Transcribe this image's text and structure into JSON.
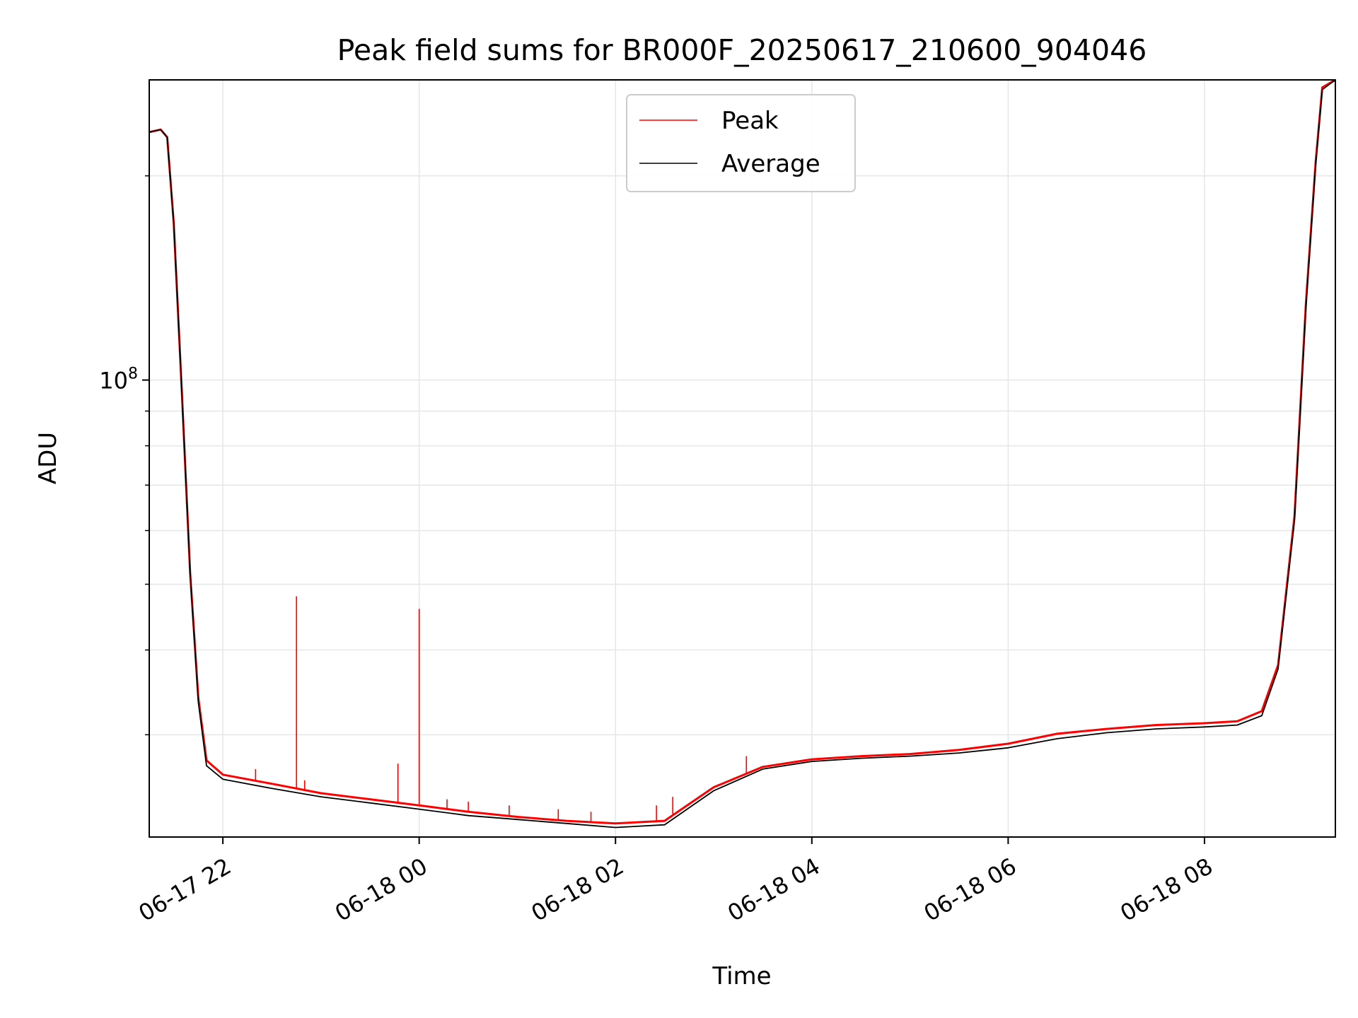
{
  "chart_data": {
    "type": "line",
    "title": "Peak field sums for BR000F_20250617_210600_904046",
    "xlabel": "Time",
    "ylabel": "ADU",
    "yscale": "log",
    "xlim": [
      "2025-06-17 21:15",
      "2025-06-18 09:20"
    ],
    "ylim": [
      21200000,
      277000000
    ],
    "grid": true,
    "legend_position": "top-center",
    "x_ticks": [
      {
        "value": "2025-06-17 22:00",
        "label": "06-17 22"
      },
      {
        "value": "2025-06-18 00:00",
        "label": "06-18 00"
      },
      {
        "value": "2025-06-18 02:00",
        "label": "06-18 02"
      },
      {
        "value": "2025-06-18 04:00",
        "label": "06-18 04"
      },
      {
        "value": "2025-06-18 06:00",
        "label": "06-18 06"
      },
      {
        "value": "2025-06-18 08:00",
        "label": "06-18 08"
      }
    ],
    "y_ticks": [
      {
        "value": 100000000,
        "base": "10",
        "exponent": "8"
      }
    ],
    "series": [
      {
        "name": "Peak",
        "color": "#ff0000",
        "x": [
          "2025-06-17 21:15",
          "2025-06-17 21:22",
          "2025-06-17 21:26",
          "2025-06-17 21:30",
          "2025-06-17 21:35",
          "2025-06-17 21:40",
          "2025-06-17 21:45",
          "2025-06-17 21:50",
          "2025-06-17 22:00",
          "2025-06-17 22:30",
          "2025-06-17 23:00",
          "2025-06-17 23:30",
          "2025-06-18 00:00",
          "2025-06-18 00:30",
          "2025-06-18 01:00",
          "2025-06-18 01:30",
          "2025-06-18 02:00",
          "2025-06-18 02:30",
          "2025-06-18 03:00",
          "2025-06-18 03:30",
          "2025-06-18 04:00",
          "2025-06-18 04:30",
          "2025-06-18 05:00",
          "2025-06-18 05:30",
          "2025-06-18 06:00",
          "2025-06-18 06:30",
          "2025-06-18 07:00",
          "2025-06-18 07:30",
          "2025-06-18 08:00",
          "2025-06-18 08:20",
          "2025-06-18 08:35",
          "2025-06-18 08:45",
          "2025-06-18 08:55",
          "2025-06-18 09:02",
          "2025-06-18 09:08",
          "2025-06-18 09:12",
          "2025-06-18 09:20"
        ],
        "values": [
          232000000,
          234000000,
          228000000,
          170000000,
          95000000,
          52000000,
          34000000,
          27500000,
          26200000,
          25400000,
          24600000,
          24100000,
          23600000,
          23100000,
          22700000,
          22400000,
          22200000,
          22400000,
          25100000,
          26900000,
          27600000,
          27900000,
          28100000,
          28500000,
          29100000,
          30100000,
          30600000,
          31000000,
          31200000,
          31400000,
          32500000,
          38000000,
          63000000,
          130000000,
          210000000,
          270000000,
          277000000
        ]
      },
      {
        "name": "Average",
        "color": "#000000",
        "x": [
          "2025-06-17 21:15",
          "2025-06-17 21:22",
          "2025-06-17 21:26",
          "2025-06-17 21:30",
          "2025-06-17 21:35",
          "2025-06-17 21:40",
          "2025-06-17 21:45",
          "2025-06-17 21:50",
          "2025-06-17 22:00",
          "2025-06-17 22:30",
          "2025-06-17 23:00",
          "2025-06-17 23:30",
          "2025-06-18 00:00",
          "2025-06-18 00:30",
          "2025-06-18 01:00",
          "2025-06-18 01:30",
          "2025-06-18 02:00",
          "2025-06-18 02:30",
          "2025-06-18 03:00",
          "2025-06-18 03:30",
          "2025-06-18 04:00",
          "2025-06-18 04:30",
          "2025-06-18 05:00",
          "2025-06-18 05:30",
          "2025-06-18 06:00",
          "2025-06-18 06:30",
          "2025-06-18 07:00",
          "2025-06-18 07:30",
          "2025-06-18 08:00",
          "2025-06-18 08:20",
          "2025-06-18 08:35",
          "2025-06-18 08:45",
          "2025-06-18 08:55",
          "2025-06-18 09:02",
          "2025-06-18 09:08",
          "2025-06-18 09:12",
          "2025-06-18 09:20"
        ],
        "values": [
          232000000,
          234000000,
          228000000,
          170000000,
          95000000,
          52000000,
          33500000,
          27000000,
          25800000,
          25000000,
          24300000,
          23800000,
          23300000,
          22800000,
          22500000,
          22200000,
          21900000,
          22100000,
          24800000,
          26700000,
          27400000,
          27700000,
          27900000,
          28200000,
          28700000,
          29600000,
          30200000,
          30600000,
          30800000,
          31000000,
          32000000,
          37500000,
          62000000,
          128000000,
          208000000,
          268000000,
          277000000
        ]
      }
    ],
    "annotations": {
      "peak_spikes": [
        {
          "x": "2025-06-17 22:20",
          "value": 26700000
        },
        {
          "x": "2025-06-17 22:45",
          "value": 48000000
        },
        {
          "x": "2025-06-17 22:50",
          "value": 25700000
        },
        {
          "x": "2025-06-17 23:47",
          "value": 27200000
        },
        {
          "x": "2025-06-18 00:00",
          "value": 46000000
        },
        {
          "x": "2025-06-18 00:17",
          "value": 24100000
        },
        {
          "x": "2025-06-18 00:30",
          "value": 23900000
        },
        {
          "x": "2025-06-18 00:55",
          "value": 23600000
        },
        {
          "x": "2025-06-18 01:25",
          "value": 23300000
        },
        {
          "x": "2025-06-18 01:45",
          "value": 23100000
        },
        {
          "x": "2025-06-18 02:25",
          "value": 23600000
        },
        {
          "x": "2025-06-18 02:35",
          "value": 24300000
        },
        {
          "x": "2025-06-18 03:20",
          "value": 27900000
        }
      ]
    }
  }
}
